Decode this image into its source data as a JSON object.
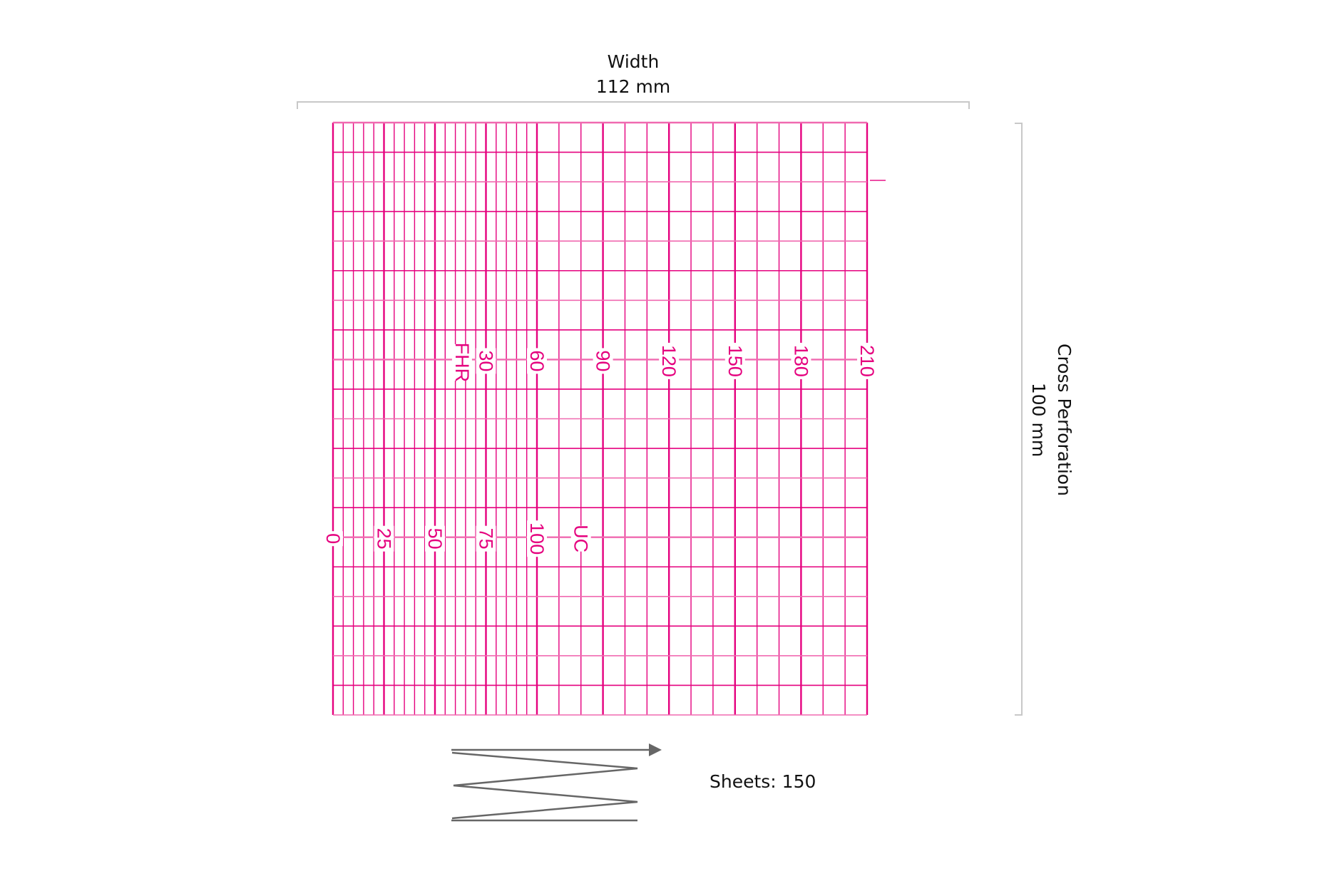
{
  "colors": {
    "grid": "#e5007e",
    "grid_light": "#f06ab0",
    "dimension": "#c8c8c8",
    "fold_icon": "#666666",
    "text": "#111111"
  },
  "width_dimension": {
    "title": "Width",
    "value": "112 mm"
  },
  "height_dimension": {
    "title": "Cross Perforation",
    "value": "100 mm"
  },
  "fhr_scale": {
    "name": "FHR",
    "ticks": [
      "30",
      "60",
      "90",
      "120",
      "150",
      "180",
      "210"
    ]
  },
  "uc_scale": {
    "name": "UC",
    "ticks": [
      "0",
      "25",
      "50",
      "75",
      "100"
    ]
  },
  "fold": {
    "icon": "zigzag-fanfold-arrow-icon",
    "sheets_label": "Sheets: 150"
  }
}
